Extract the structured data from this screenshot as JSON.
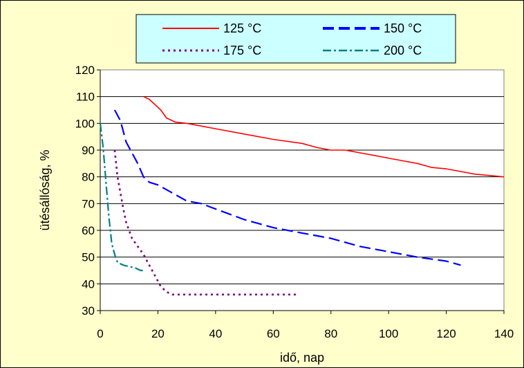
{
  "chart_data": {
    "type": "line",
    "xlabel": "idő, nap",
    "ylabel": "ütésállóság, %",
    "xlim": [
      0,
      140
    ],
    "ylim": [
      30,
      120
    ],
    "x_ticks": [
      0,
      20,
      40,
      60,
      80,
      100,
      120,
      140
    ],
    "y_ticks": [
      30,
      40,
      50,
      60,
      70,
      80,
      90,
      100,
      110,
      120
    ],
    "grid": "horizontal",
    "legend_position": "top",
    "series": [
      {
        "name": "125 °C",
        "color": "#FF0000",
        "style": "solid",
        "points": [
          [
            15,
            110
          ],
          [
            17,
            109
          ],
          [
            19,
            107
          ],
          [
            21,
            105
          ],
          [
            23,
            102
          ],
          [
            26,
            100.5
          ],
          [
            30,
            100
          ],
          [
            35,
            99
          ],
          [
            40,
            98
          ],
          [
            50,
            96
          ],
          [
            60,
            94
          ],
          [
            70,
            92.5
          ],
          [
            75,
            91
          ],
          [
            80,
            90
          ],
          [
            85,
            90
          ],
          [
            90,
            89
          ],
          [
            95,
            88
          ],
          [
            100,
            87
          ],
          [
            105,
            86
          ],
          [
            110,
            85
          ],
          [
            115,
            83.5
          ],
          [
            120,
            83
          ],
          [
            125,
            82
          ],
          [
            130,
            81
          ],
          [
            135,
            80.5
          ],
          [
            140,
            80
          ]
        ]
      },
      {
        "name": "150 °C",
        "color": "#0000FF",
        "style": "long-dash",
        "points": [
          [
            5,
            105
          ],
          [
            7,
            101
          ],
          [
            9,
            93
          ],
          [
            11,
            89
          ],
          [
            13,
            85
          ],
          [
            15,
            80
          ],
          [
            17,
            78
          ],
          [
            20,
            77
          ],
          [
            25,
            74
          ],
          [
            30,
            71
          ],
          [
            35,
            70
          ],
          [
            40,
            68
          ],
          [
            50,
            64
          ],
          [
            60,
            61
          ],
          [
            70,
            59
          ],
          [
            80,
            57
          ],
          [
            90,
            54
          ],
          [
            100,
            52
          ],
          [
            110,
            50
          ],
          [
            120,
            48.5
          ],
          [
            125,
            47
          ]
        ]
      },
      {
        "name": "175 °C",
        "color": "#800080",
        "style": "dotted",
        "points": [
          [
            5,
            90
          ],
          [
            6,
            80
          ],
          [
            7,
            74
          ],
          [
            8,
            68
          ],
          [
            9,
            63
          ],
          [
            11,
            57
          ],
          [
            13,
            54
          ],
          [
            15,
            51
          ],
          [
            17,
            47
          ],
          [
            19,
            43
          ],
          [
            21,
            39
          ],
          [
            23,
            37
          ],
          [
            25,
            36
          ],
          [
            30,
            36
          ],
          [
            40,
            36
          ],
          [
            50,
            36
          ],
          [
            60,
            36
          ],
          [
            69,
            36
          ]
        ]
      },
      {
        "name": "200 °C",
        "color": "#008080",
        "style": "dash-dot",
        "points": [
          [
            0,
            100
          ],
          [
            1,
            91
          ],
          [
            2,
            78
          ],
          [
            3,
            65
          ],
          [
            4,
            55
          ],
          [
            5,
            51
          ],
          [
            6,
            48
          ],
          [
            8,
            47
          ],
          [
            10,
            46.5
          ],
          [
            12,
            46
          ],
          [
            14,
            45
          ],
          [
            15,
            45
          ]
        ]
      }
    ]
  }
}
